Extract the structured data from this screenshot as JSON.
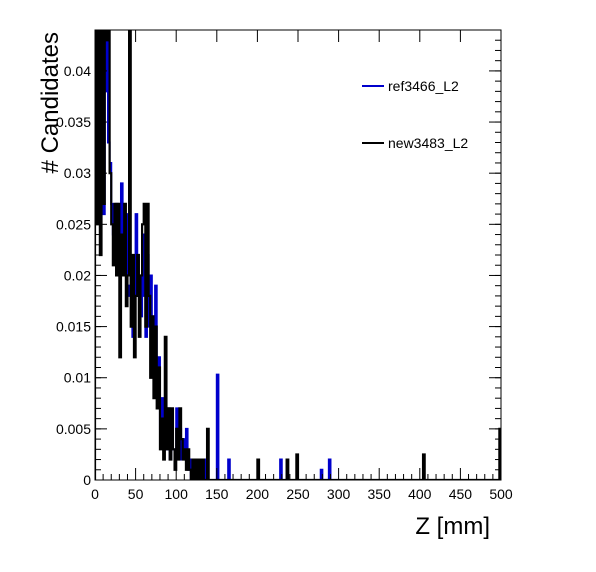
{
  "chart_data": {
    "type": "line",
    "style": "step-histogram",
    "xlabel": "Z [mm]",
    "ylabel": "# Candidates",
    "xlim": [
      0,
      500
    ],
    "ylim": [
      0,
      0.044
    ],
    "grid": false,
    "legend_position": "top-right",
    "x_ticks": [
      0,
      50,
      100,
      150,
      200,
      250,
      300,
      350,
      400,
      450,
      500
    ],
    "y_ticks": [
      0,
      0.005,
      0.01,
      0.015,
      0.02,
      0.025,
      0.03,
      0.035,
      0.04
    ],
    "y_tick_labels": [
      "0",
      "0.005",
      "0.01",
      "0.015",
      "0.02",
      "0.025",
      "0.03",
      "0.035",
      "0.04"
    ],
    "bin_width": 2,
    "series": [
      {
        "name": "ref3466_L2",
        "color": "#0000cc",
        "bins": [
          {
            "x": 0,
            "y": 0.045
          },
          {
            "x": 2,
            "y": 0.03
          },
          {
            "x": 4,
            "y": 0.041
          },
          {
            "x": 6,
            "y": 0.032
          },
          {
            "x": 8,
            "y": 0.045
          },
          {
            "x": 10,
            "y": 0.026
          },
          {
            "x": 12,
            "y": 0.038
          },
          {
            "x": 14,
            "y": 0.043
          },
          {
            "x": 16,
            "y": 0.033
          },
          {
            "x": 18,
            "y": 0.031
          },
          {
            "x": 20,
            "y": 0.027
          },
          {
            "x": 22,
            "y": 0.024
          },
          {
            "x": 24,
            "y": 0.022
          },
          {
            "x": 26,
            "y": 0.027
          },
          {
            "x": 28,
            "y": 0.02
          },
          {
            "x": 30,
            "y": 0.021
          },
          {
            "x": 32,
            "y": 0.029
          },
          {
            "x": 34,
            "y": 0.024
          },
          {
            "x": 36,
            "y": 0.02
          },
          {
            "x": 38,
            "y": 0.026
          },
          {
            "x": 40,
            "y": 0.019
          },
          {
            "x": 42,
            "y": 0.018
          },
          {
            "x": 44,
            "y": 0.022
          },
          {
            "x": 46,
            "y": 0.014
          },
          {
            "x": 48,
            "y": 0.018
          },
          {
            "x": 50,
            "y": 0.026
          },
          {
            "x": 52,
            "y": 0.022
          },
          {
            "x": 54,
            "y": 0.02
          },
          {
            "x": 56,
            "y": 0.016
          },
          {
            "x": 58,
            "y": 0.024
          },
          {
            "x": 60,
            "y": 0.018
          },
          {
            "x": 62,
            "y": 0.014
          },
          {
            "x": 64,
            "y": 0.022
          },
          {
            "x": 66,
            "y": 0.015
          },
          {
            "x": 68,
            "y": 0.02
          },
          {
            "x": 70,
            "y": 0.016
          },
          {
            "x": 72,
            "y": 0.012
          },
          {
            "x": 74,
            "y": 0.019
          },
          {
            "x": 76,
            "y": 0.009
          },
          {
            "x": 78,
            "y": 0.012
          },
          {
            "x": 80,
            "y": 0.005
          },
          {
            "x": 82,
            "y": 0.008
          },
          {
            "x": 84,
            "y": 0.004
          },
          {
            "x": 86,
            "y": 0.006
          },
          {
            "x": 88,
            "y": 0.003
          },
          {
            "x": 90,
            "y": 0.007
          },
          {
            "x": 92,
            "y": 0.002
          },
          {
            "x": 94,
            "y": 0.005
          },
          {
            "x": 96,
            "y": 0.003
          },
          {
            "x": 98,
            "y": 0.002
          },
          {
            "x": 100,
            "y": 0.007
          },
          {
            "x": 102,
            "y": 0.003
          },
          {
            "x": 104,
            "y": 0.005
          },
          {
            "x": 106,
            "y": 0.002
          },
          {
            "x": 108,
            "y": 0.004
          },
          {
            "x": 110,
            "y": 0.002
          },
          {
            "x": 112,
            "y": 0.005
          },
          {
            "x": 114,
            "y": 0.001
          },
          {
            "x": 116,
            "y": 0.002
          },
          {
            "x": 118,
            "y": 0.0
          },
          {
            "x": 120,
            "y": 0.002
          },
          {
            "x": 122,
            "y": 0.0
          },
          {
            "x": 124,
            "y": 0.0
          },
          {
            "x": 126,
            "y": 0.002
          },
          {
            "x": 128,
            "y": 0.0
          },
          {
            "x": 130,
            "y": 0.002
          },
          {
            "x": 132,
            "y": 0.0
          },
          {
            "x": 134,
            "y": 0.0
          },
          {
            "x": 136,
            "y": 0.002
          },
          {
            "x": 138,
            "y": 0.0
          },
          {
            "x": 140,
            "y": 0.0
          },
          {
            "x": 142,
            "y": 0.0
          },
          {
            "x": 144,
            "y": 0.0
          },
          {
            "x": 146,
            "y": 0.0
          },
          {
            "x": 148,
            "y": 0.0
          },
          {
            "x": 150,
            "y": 0.0103
          },
          {
            "x": 152,
            "y": 0.0
          },
          {
            "x": 154,
            "y": 0.0
          },
          {
            "x": 164,
            "y": 0.002
          },
          {
            "x": 166,
            "y": 0.0
          },
          {
            "x": 228,
            "y": 0.002
          },
          {
            "x": 230,
            "y": 0.0
          },
          {
            "x": 278,
            "y": 0.001
          },
          {
            "x": 280,
            "y": 0.0
          },
          {
            "x": 288,
            "y": 0.002
          },
          {
            "x": 290,
            "y": 0.0
          }
        ]
      },
      {
        "name": "new3483_L2",
        "color": "#000000",
        "bins": [
          {
            "x": 0,
            "y": 0.045
          },
          {
            "x": 2,
            "y": 0.025
          },
          {
            "x": 4,
            "y": 0.045
          },
          {
            "x": 6,
            "y": 0.022
          },
          {
            "x": 8,
            "y": 0.045
          },
          {
            "x": 10,
            "y": 0.027
          },
          {
            "x": 12,
            "y": 0.045
          },
          {
            "x": 14,
            "y": 0.043
          },
          {
            "x": 16,
            "y": 0.045
          },
          {
            "x": 18,
            "y": 0.03
          },
          {
            "x": 20,
            "y": 0.025
          },
          {
            "x": 22,
            "y": 0.021
          },
          {
            "x": 24,
            "y": 0.027
          },
          {
            "x": 26,
            "y": 0.02
          },
          {
            "x": 28,
            "y": 0.027
          },
          {
            "x": 30,
            "y": 0.012
          },
          {
            "x": 32,
            "y": 0.024
          },
          {
            "x": 34,
            "y": 0.02
          },
          {
            "x": 36,
            "y": 0.027
          },
          {
            "x": 38,
            "y": 0.017
          },
          {
            "x": 40,
            "y": 0.02
          },
          {
            "x": 42,
            "y": 0.045
          },
          {
            "x": 44,
            "y": 0.015
          },
          {
            "x": 46,
            "y": 0.022
          },
          {
            "x": 48,
            "y": 0.012
          },
          {
            "x": 50,
            "y": 0.018
          },
          {
            "x": 52,
            "y": 0.022
          },
          {
            "x": 54,
            "y": 0.014
          },
          {
            "x": 56,
            "y": 0.02
          },
          {
            "x": 58,
            "y": 0.025
          },
          {
            "x": 60,
            "y": 0.027
          },
          {
            "x": 62,
            "y": 0.015
          },
          {
            "x": 64,
            "y": 0.027
          },
          {
            "x": 66,
            "y": 0.018
          },
          {
            "x": 68,
            "y": 0.01
          },
          {
            "x": 70,
            "y": 0.016
          },
          {
            "x": 72,
            "y": 0.008
          },
          {
            "x": 74,
            "y": 0.015
          },
          {
            "x": 76,
            "y": 0.007
          },
          {
            "x": 78,
            "y": 0.011
          },
          {
            "x": 80,
            "y": 0.003
          },
          {
            "x": 82,
            "y": 0.006
          },
          {
            "x": 84,
            "y": 0.002
          },
          {
            "x": 86,
            "y": 0.014
          },
          {
            "x": 88,
            "y": 0.003
          },
          {
            "x": 90,
            "y": 0.007
          },
          {
            "x": 92,
            "y": 0.002
          },
          {
            "x": 94,
            "y": 0.007
          },
          {
            "x": 96,
            "y": 0.003
          },
          {
            "x": 98,
            "y": 0.001
          },
          {
            "x": 100,
            "y": 0.005
          },
          {
            "x": 102,
            "y": 0.002
          },
          {
            "x": 104,
            "y": 0.007
          },
          {
            "x": 106,
            "y": 0.004
          },
          {
            "x": 108,
            "y": 0.002
          },
          {
            "x": 110,
            "y": 0.003
          },
          {
            "x": 112,
            "y": 0.001
          },
          {
            "x": 114,
            "y": 0.003
          },
          {
            "x": 116,
            "y": 0.001
          },
          {
            "x": 118,
            "y": 0.0
          },
          {
            "x": 120,
            "y": 0.002
          },
          {
            "x": 122,
            "y": 0.0
          },
          {
            "x": 124,
            "y": 0.002
          },
          {
            "x": 126,
            "y": 0.0
          },
          {
            "x": 128,
            "y": 0.002
          },
          {
            "x": 130,
            "y": 0.0
          },
          {
            "x": 132,
            "y": 0.002
          },
          {
            "x": 134,
            "y": 0.0
          },
          {
            "x": 136,
            "y": 0.0
          },
          {
            "x": 138,
            "y": 0.005
          },
          {
            "x": 140,
            "y": 0.0
          },
          {
            "x": 142,
            "y": 0.0
          },
          {
            "x": 198,
            "y": 0.0
          },
          {
            "x": 200,
            "y": 0.002
          },
          {
            "x": 202,
            "y": 0.0
          },
          {
            "x": 236,
            "y": 0.002
          },
          {
            "x": 238,
            "y": 0.0
          },
          {
            "x": 248,
            "y": 0.0025
          },
          {
            "x": 250,
            "y": 0.0
          },
          {
            "x": 404,
            "y": 0.0025
          },
          {
            "x": 406,
            "y": 0.0
          },
          {
            "x": 498,
            "y": 0.005
          },
          {
            "x": 500,
            "y": 0.0
          }
        ]
      }
    ]
  }
}
